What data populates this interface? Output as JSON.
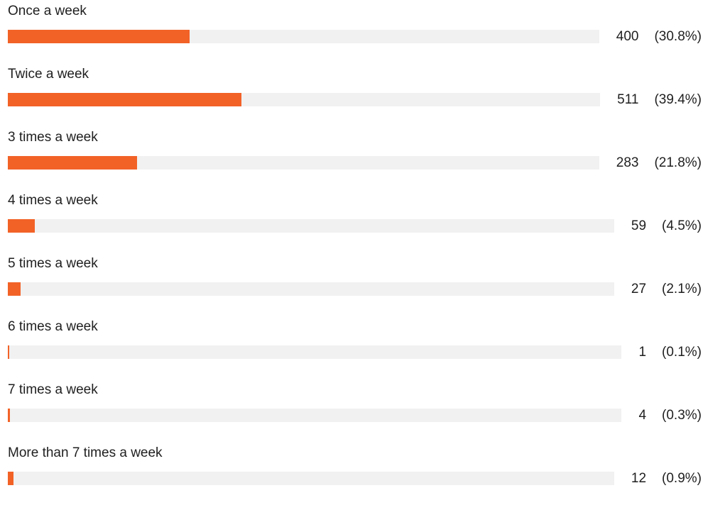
{
  "chart_data": {
    "type": "bar",
    "orientation": "horizontal",
    "bar_color": "#f26227",
    "track_color": "#f1f1f1",
    "categories": [
      "Once a week",
      "Twice a week",
      "3 times a week",
      "4 times a week",
      "5 times a week",
      "6 times a week",
      "7 times a week",
      "More than 7 times a week"
    ],
    "values": [
      400,
      511,
      283,
      59,
      27,
      1,
      4,
      12
    ],
    "value_labels": [
      "400",
      "511",
      "283",
      "59",
      "27",
      "1",
      "4",
      "12"
    ],
    "percent_labels": [
      "(30.8%)",
      "(39.4%)",
      "(21.8%)",
      "(4.5%)",
      "(2.1%)",
      "(0.1%)",
      "(0.3%)",
      "(0.9%)"
    ],
    "percents": [
      30.8,
      39.4,
      21.8,
      4.5,
      2.1,
      0.1,
      0.3,
      0.9
    ]
  }
}
